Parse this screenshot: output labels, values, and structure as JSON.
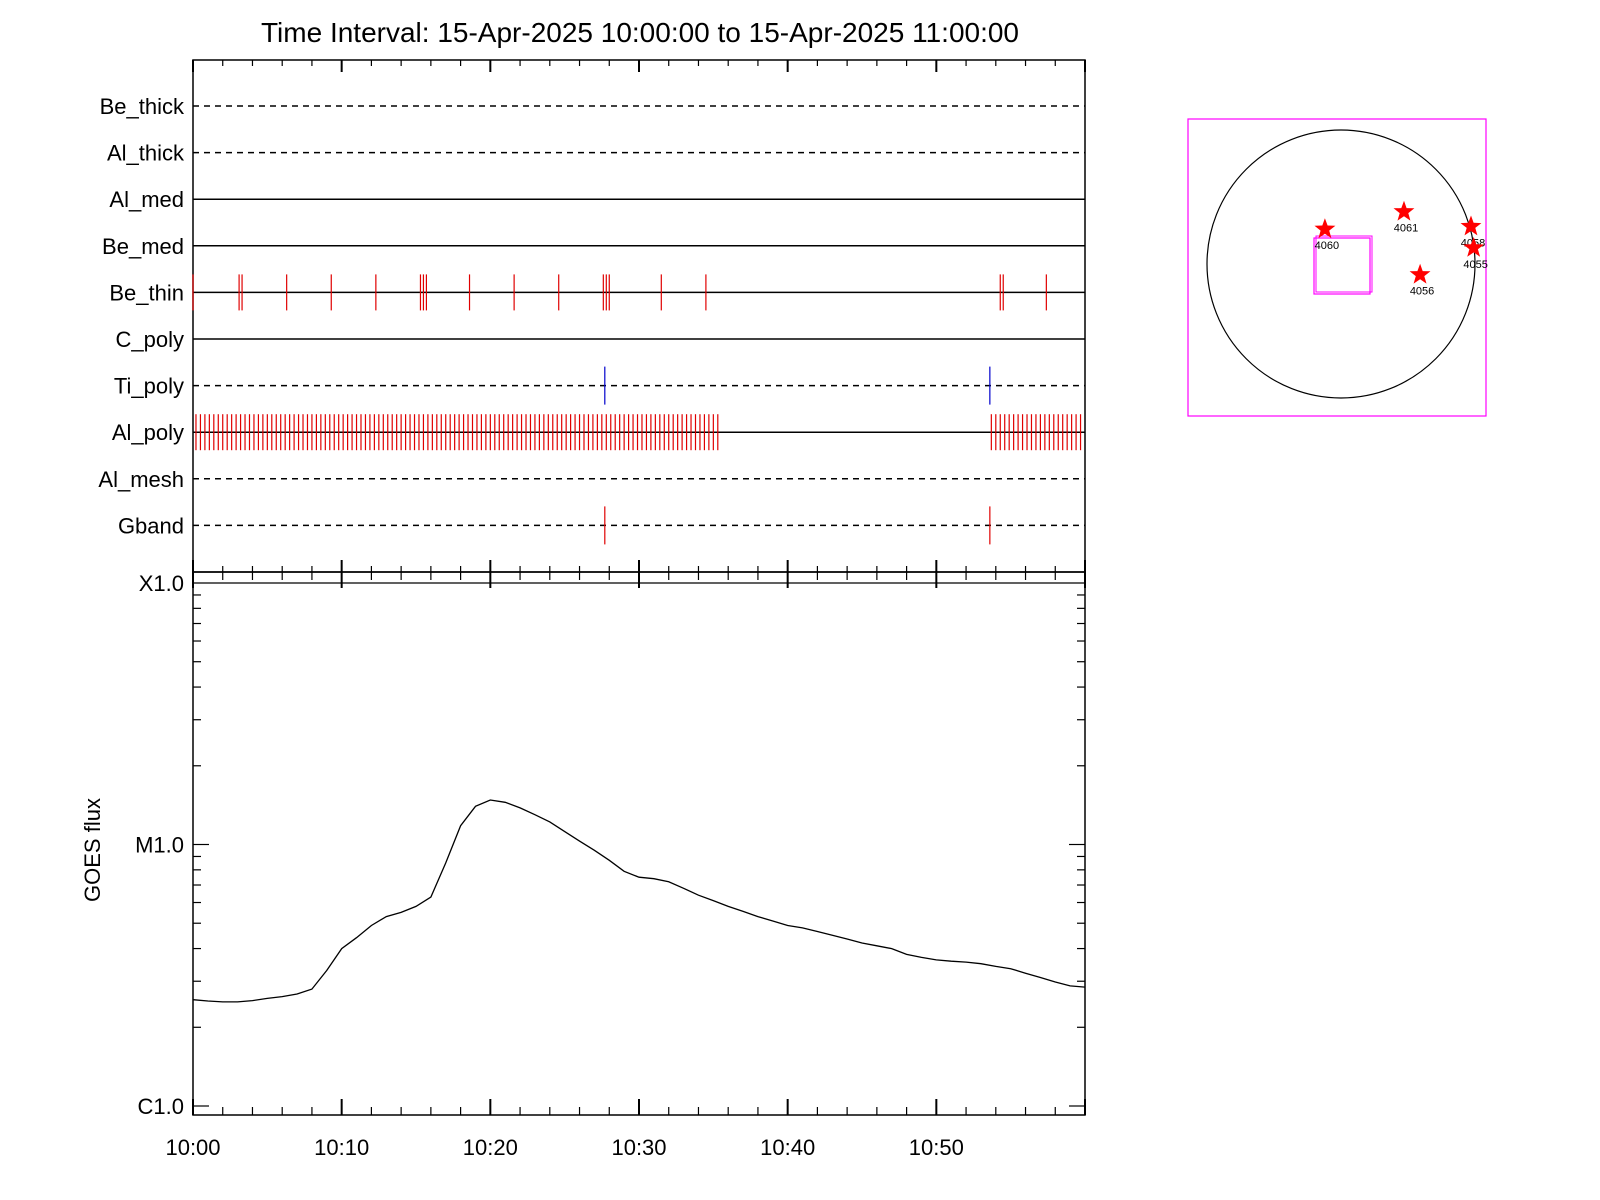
{
  "chart_data": [
    {
      "type": "timeline",
      "title": "Time Interval: 15-Apr-2025 10:00:00 to 15-Apr-2025 11:00:00",
      "x_range": [
        "10:00",
        "11:00"
      ],
      "rows": [
        {
          "label": "Be_thick",
          "style": "dashed",
          "events": []
        },
        {
          "label": "Al_thick",
          "style": "dashed",
          "events": []
        },
        {
          "label": "Al_med",
          "style": "solid",
          "events": []
        },
        {
          "label": "Be_med",
          "style": "solid",
          "events": []
        },
        {
          "label": "Be_thin",
          "style": "solid",
          "color": "#e00000",
          "events": [
            0.0,
            3.1,
            3.3,
            6.3,
            9.3,
            12.3,
            15.3,
            15.5,
            15.7,
            18.6,
            21.6,
            24.6,
            27.6,
            27.8,
            28.0,
            31.5,
            34.5,
            54.3,
            54.5,
            57.4
          ]
        },
        {
          "label": "C_poly",
          "style": "solid",
          "events": []
        },
        {
          "label": "Ti_poly",
          "style": "dashed",
          "color": "#0000cc",
          "events": [
            27.7,
            53.6
          ]
        },
        {
          "label": "Al_poly",
          "style": "solid",
          "color": "#e00000",
          "event_ranges": [
            [
              0.2,
              35.3
            ],
            [
              53.7,
              59.7
            ]
          ],
          "event_spacing_min": 0.3
        },
        {
          "label": "Al_mesh",
          "style": "dashed",
          "events": []
        },
        {
          "label": "Gband",
          "style": "dashed",
          "color": "#e00000",
          "events": [
            27.7,
            53.6
          ]
        }
      ]
    },
    {
      "type": "line",
      "ylabel": "GOES flux",
      "ylog": true,
      "ylim": [
        1e-06,
        0.0001
      ],
      "ytick_labels": [
        "C1.0",
        "M1.0",
        "X1.0"
      ],
      "xtick_labels": [
        "10:00",
        "10:10",
        "10:20",
        "10:30",
        "10:40",
        "10:50"
      ],
      "xlim": [
        0,
        60
      ],
      "x": [
        0,
        1,
        2,
        3,
        4,
        5,
        6,
        7,
        8,
        9,
        10,
        11,
        12,
        13,
        14,
        15,
        16,
        17,
        18,
        19,
        20,
        21,
        22,
        23,
        24,
        25,
        26,
        27,
        28,
        29,
        30,
        31,
        32,
        33,
        34,
        35,
        36,
        37,
        38,
        39,
        40,
        41,
        42,
        43,
        44,
        45,
        46,
        47,
        48,
        49,
        50,
        51,
        52,
        53,
        54,
        55,
        56,
        57,
        58,
        59,
        60
      ],
      "y": [
        2.55e-06,
        2.52e-06,
        2.5e-06,
        2.5e-06,
        2.53e-06,
        2.58e-06,
        2.62e-06,
        2.68e-06,
        2.8e-06,
        3.3e-06,
        4e-06,
        4.4e-06,
        4.9e-06,
        5.3e-06,
        5.5e-06,
        5.8e-06,
        6.3e-06,
        8.5e-06,
        1.18e-05,
        1.4e-05,
        1.48e-05,
        1.45e-05,
        1.38e-05,
        1.3e-05,
        1.22e-05,
        1.12e-05,
        1.03e-05,
        9.5e-06,
        8.7e-06,
        7.9e-06,
        7.5e-06,
        7.4e-06,
        7.2e-06,
        6.8e-06,
        6.4e-06,
        6.1e-06,
        5.8e-06,
        5.55e-06,
        5.3e-06,
        5.1e-06,
        4.9e-06,
        4.8e-06,
        4.65e-06,
        4.5e-06,
        4.35e-06,
        4.2e-06,
        4.1e-06,
        4e-06,
        3.8e-06,
        3.7e-06,
        3.62e-06,
        3.58e-06,
        3.55e-06,
        3.5e-06,
        3.42e-06,
        3.35e-06,
        3.22e-06,
        3.1e-06,
        2.98e-06,
        2.88e-06,
        2.85e-06
      ]
    },
    {
      "type": "solar_map",
      "regions": [
        {
          "label": "4060",
          "lon": -0.12,
          "lat": 0.26
        },
        {
          "label": "4061",
          "lon": 0.47,
          "lat": 0.39
        },
        {
          "label": "4058",
          "lon": 0.97,
          "lat": 0.28
        },
        {
          "label": "4055",
          "lon": 0.99,
          "lat": 0.12
        },
        {
          "label": "4056",
          "lon": 0.59,
          "lat": -0.08
        }
      ],
      "colors": {
        "box": "#ff00ff",
        "star": "#ff0000",
        "disk": "#000000"
      }
    }
  ]
}
